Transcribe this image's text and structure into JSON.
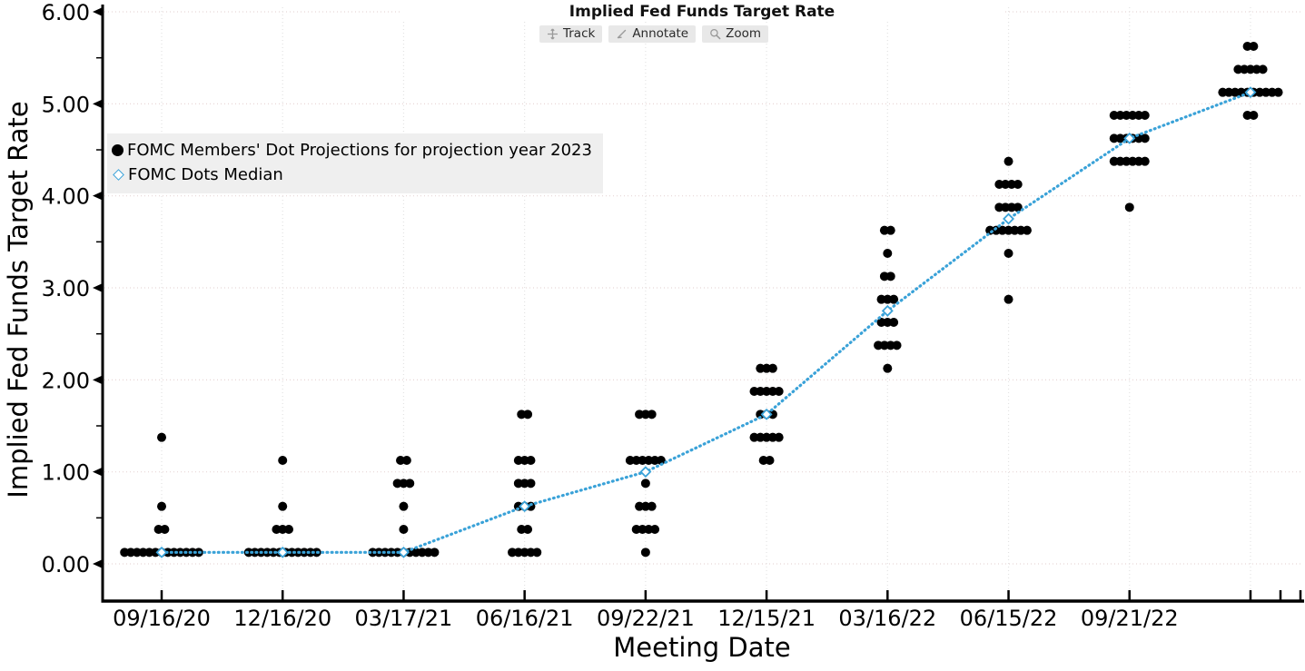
{
  "title": "Implied Fed Funds Target Rate",
  "toolbar": {
    "buttons": [
      {
        "icon": "track-crosshair-icon",
        "label": "Track"
      },
      {
        "icon": "annotate-pencil-icon",
        "label": "Annotate"
      },
      {
        "icon": "zoom-magnifier-icon",
        "label": "Zoom"
      }
    ]
  },
  "legend": {
    "items": [
      {
        "marker": "black-dot",
        "label": "FOMC Members' Dot Projections for projection year 2023"
      },
      {
        "marker": "blue-open-diamond",
        "label": "FOMC Dots Median"
      }
    ]
  },
  "colors": {
    "dot": "#000000",
    "median_blue": "#3aa2d8",
    "legend_bg": "#efefef",
    "toolbar_btn_bg": "#e8e8e8",
    "grid_vertical": "#e3e3e3",
    "grid_horizontal": "#e8d6d6",
    "axis": "#000000"
  },
  "chart_data": {
    "type": "scatter",
    "title": "Implied Fed Funds Target Rate",
    "xlabel": "Meeting Date",
    "ylabel": "Implied Fed Funds Target Rate",
    "ylim": [
      -0.4,
      6.1
    ],
    "grid": true,
    "legend_position": "upper-left",
    "y_tick_values": [
      0,
      1,
      2,
      3,
      4,
      5,
      6
    ],
    "y_tick_labels": [
      "0.00",
      "1.00",
      "2.00",
      "3.00",
      "4.00",
      "5.00",
      "6.00"
    ],
    "series": [
      {
        "name": "FOMC Members' Dot Projections for projection year 2023",
        "type": "dot-cluster",
        "meetings": [
          {
            "label": "09/16/20",
            "dots": [
              [
                1.375,
                1
              ],
              [
                0.625,
                1
              ],
              [
                0.375,
                2
              ],
              [
                0.125,
                13
              ]
            ]
          },
          {
            "label": "12/16/20",
            "dots": [
              [
                1.125,
                1
              ],
              [
                0.625,
                1
              ],
              [
                0.375,
                3
              ],
              [
                0.125,
                12
              ]
            ]
          },
          {
            "label": "03/17/21",
            "dots": [
              [
                1.125,
                2
              ],
              [
                0.875,
                3
              ],
              [
                0.625,
                1
              ],
              [
                0.375,
                1
              ],
              [
                0.125,
                11
              ]
            ]
          },
          {
            "label": "06/16/21",
            "dots": [
              [
                1.625,
                2
              ],
              [
                1.125,
                3
              ],
              [
                0.875,
                3
              ],
              [
                0.625,
                3
              ],
              [
                0.375,
                2
              ],
              [
                0.125,
                5
              ]
            ]
          },
          {
            "label": "09/22/21",
            "dots": [
              [
                1.625,
                3
              ],
              [
                1.125,
                6
              ],
              [
                0.875,
                1
              ],
              [
                0.625,
                3
              ],
              [
                0.375,
                4
              ],
              [
                0.125,
                1
              ]
            ]
          },
          {
            "label": "12/15/21",
            "dots": [
              [
                2.125,
                3
              ],
              [
                1.875,
                5
              ],
              [
                1.625,
                3
              ],
              [
                1.375,
                5
              ],
              [
                1.125,
                2
              ]
            ]
          },
          {
            "label": "03/16/22",
            "dots": [
              [
                3.625,
                2
              ],
              [
                3.375,
                1
              ],
              [
                3.125,
                2
              ],
              [
                2.875,
                3
              ],
              [
                2.625,
                3
              ],
              [
                2.375,
                4
              ],
              [
                2.125,
                1
              ]
            ]
          },
          {
            "label": "06/15/22",
            "dots": [
              [
                4.375,
                1
              ],
              [
                4.125,
                4
              ],
              [
                3.875,
                4
              ],
              [
                3.625,
                7
              ],
              [
                3.375,
                1
              ],
              [
                2.875,
                1
              ]
            ]
          },
          {
            "label": "09/21/22",
            "dots": [
              [
                4.875,
                6
              ],
              [
                4.625,
                6
              ],
              [
                4.375,
                6
              ],
              [
                3.875,
                1
              ]
            ]
          },
          {
            "label": "",
            "dots": [
              [
                5.625,
                2
              ],
              [
                5.375,
                5
              ],
              [
                5.125,
                10
              ],
              [
                4.875,
                2
              ]
            ]
          }
        ]
      },
      {
        "name": "FOMC Dots Median",
        "type": "line-diamond",
        "values": [
          0.125,
          0.125,
          0.125,
          0.625,
          1.0,
          1.625,
          2.75,
          3.75,
          4.625,
          5.125
        ]
      }
    ]
  }
}
